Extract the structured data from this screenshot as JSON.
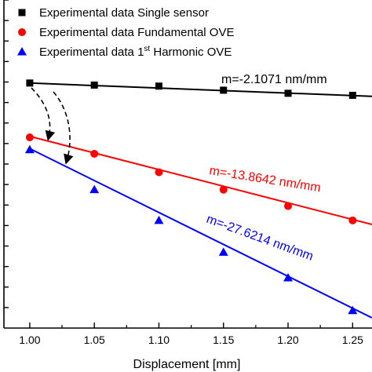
{
  "chart_data": {
    "type": "scatter",
    "xlabel": "Displacement [mm]",
    "ylabel": "",
    "xlim": [
      0.98,
      1.265
    ],
    "ylim": [
      0,
      16
    ],
    "x_ticks": [
      "1.00",
      "1.05",
      "1.10",
      "1.15",
      "1.20",
      "1.25"
    ],
    "grid": false,
    "legend_position": "top-left",
    "series": [
      {
        "name": "Experimental data Single sensor",
        "marker": "square",
        "color": "#000000",
        "x": [
          1.0,
          1.05,
          1.1,
          1.15,
          1.2,
          1.25
        ],
        "y": [
          11.95,
          11.85,
          11.8,
          11.6,
          11.45,
          11.35
        ],
        "fit": {
          "x": [
            1.0,
            1.265
          ],
          "y": [
            11.95,
            11.3
          ]
        }
      },
      {
        "name": "Experimental data Fundamental OVE",
        "marker": "circle",
        "color": "#ff0000",
        "x": [
          1.0,
          1.05,
          1.1,
          1.15,
          1.2,
          1.25
        ],
        "y": [
          9.3,
          8.5,
          7.6,
          6.75,
          5.95,
          5.25
        ],
        "fit": {
          "x": [
            1.0,
            1.265
          ],
          "y": [
            9.35,
            5.05
          ]
        }
      },
      {
        "name": "Experimental data 1st Harmonic OVE",
        "name_parts": [
          "Experimental data 1",
          "st",
          " Harmonic OVE"
        ],
        "marker": "triangle",
        "color": "#0000ff",
        "x": [
          1.0,
          1.05,
          1.1,
          1.15,
          1.2,
          1.25
        ],
        "y": [
          8.7,
          6.75,
          5.25,
          3.7,
          2.45,
          0.85
        ],
        "fit": {
          "x": [
            1.0,
            1.265
          ],
          "y": [
            8.75,
            0.5
          ]
        }
      }
    ],
    "annotations": [
      {
        "text": "m=-2.1071 nm/mm",
        "color": "#000000"
      },
      {
        "text": "m=-13.8642 nm/mm",
        "color": "#ff0000"
      },
      {
        "text": "m=-27.6214 nm/mm",
        "color": "#0000ff"
      }
    ]
  }
}
